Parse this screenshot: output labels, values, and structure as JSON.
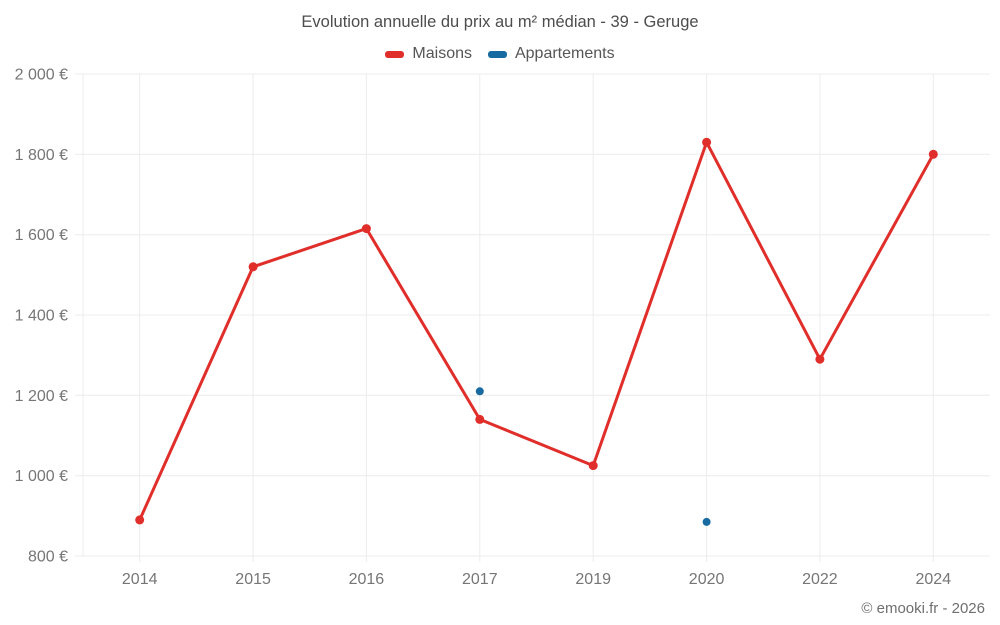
{
  "chart": {
    "footer": "© emooki.fr - 2026"
  },
  "chart_data": {
    "type": "line",
    "title": "Evolution annuelle du prix au m² médian - 39 - Geruge",
    "categories": [
      "2014",
      "2015",
      "2016",
      "2017",
      "2019",
      "2020",
      "2022",
      "2024"
    ],
    "series": [
      {
        "name": "Maisons",
        "color": "#e02e2a",
        "line": true,
        "values": [
          890,
          1520,
          1615,
          1140,
          1025,
          1830,
          1290,
          1800
        ]
      },
      {
        "name": "Appartements",
        "color": "#186ba0",
        "line": false,
        "values": [
          null,
          null,
          null,
          1210,
          null,
          885,
          null,
          null
        ]
      }
    ],
    "y_axis": {
      "min": 800,
      "max": 2000,
      "unit": "€",
      "ticks": [
        {
          "value": 800,
          "label": "800 €"
        },
        {
          "value": 1000,
          "label": "1 000 €"
        },
        {
          "value": 1200,
          "label": "1 200 €"
        },
        {
          "value": 1400,
          "label": "1 400 €"
        },
        {
          "value": 1600,
          "label": "1 600 €"
        },
        {
          "value": 1800,
          "label": "1 800 €"
        },
        {
          "value": 2000,
          "label": "2 000 €"
        }
      ]
    },
    "grid": true,
    "legend_position": "top"
  },
  "colors": {
    "grid": "#ececec",
    "tick_text": "#767676",
    "title_text": "#4d4d4d",
    "background": "#ffffff"
  }
}
